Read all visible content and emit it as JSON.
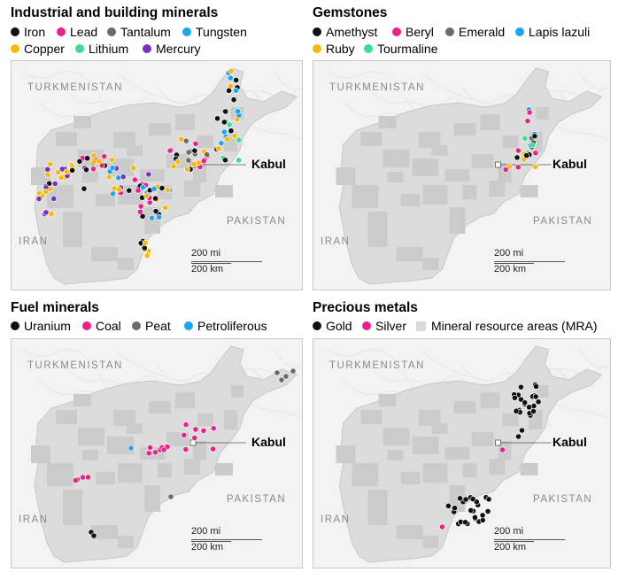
{
  "colors": {
    "black": "#111111",
    "pink": "#ee1f8b",
    "gray": "#6b6b6b",
    "blue": "#1aa6f0",
    "yellow": "#f7b90a",
    "green": "#37e08a",
    "purple": "#7b2fc1",
    "mra": "#d9d9d9",
    "country": "#dcdcdc",
    "background": "#f3f3f3"
  },
  "map_labels": {
    "turkmenistan": "TURKMENISTAN",
    "pakistan": "PAKISTAN",
    "iran": "IRAN",
    "kabul": "Kabul",
    "scale_mi": "200 mi",
    "scale_km": "200 km"
  },
  "panels": [
    {
      "title": "Industrial and building minerals",
      "legend": [
        {
          "label": "Iron",
          "color": "#111111"
        },
        {
          "label": "Lead",
          "color": "#ee1f8b"
        },
        {
          "label": "Tantalum",
          "color": "#6b6b6b"
        },
        {
          "label": "Tungsten",
          "color": "#1aa6f0"
        },
        {
          "label": "Copper",
          "color": "#f7b90a"
        },
        {
          "label": "Lithium",
          "color": "#37e08a"
        },
        {
          "label": "Mercury",
          "color": "#7b2fc1"
        }
      ]
    },
    {
      "title": "Gemstones",
      "legend": [
        {
          "label": "Amethyst",
          "color": "#111111"
        },
        {
          "label": "Beryl",
          "color": "#ee1f8b"
        },
        {
          "label": "Emerald",
          "color": "#6b6b6b"
        },
        {
          "label": "Lapis lazuli",
          "color": "#1aa6f0"
        },
        {
          "label": "Ruby",
          "color": "#f7b90a"
        },
        {
          "label": "Tourmaline",
          "color": "#37e08a"
        }
      ]
    },
    {
      "title": "Fuel minerals",
      "legend": [
        {
          "label": "Uranium",
          "color": "#111111"
        },
        {
          "label": "Coal",
          "color": "#ee1f8b"
        },
        {
          "label": "Peat",
          "color": "#6b6b6b"
        },
        {
          "label": "Petroliferous",
          "color": "#1aa6f0"
        }
      ]
    },
    {
      "title": "Precious metals",
      "legend": [
        {
          "label": "Gold",
          "color": "#111111"
        },
        {
          "label": "Silver",
          "color": "#ee1f8b"
        },
        {
          "label": "Mineral resource areas (MRA)",
          "color": "#d9d9d9",
          "shape": "square"
        }
      ]
    }
  ]
}
